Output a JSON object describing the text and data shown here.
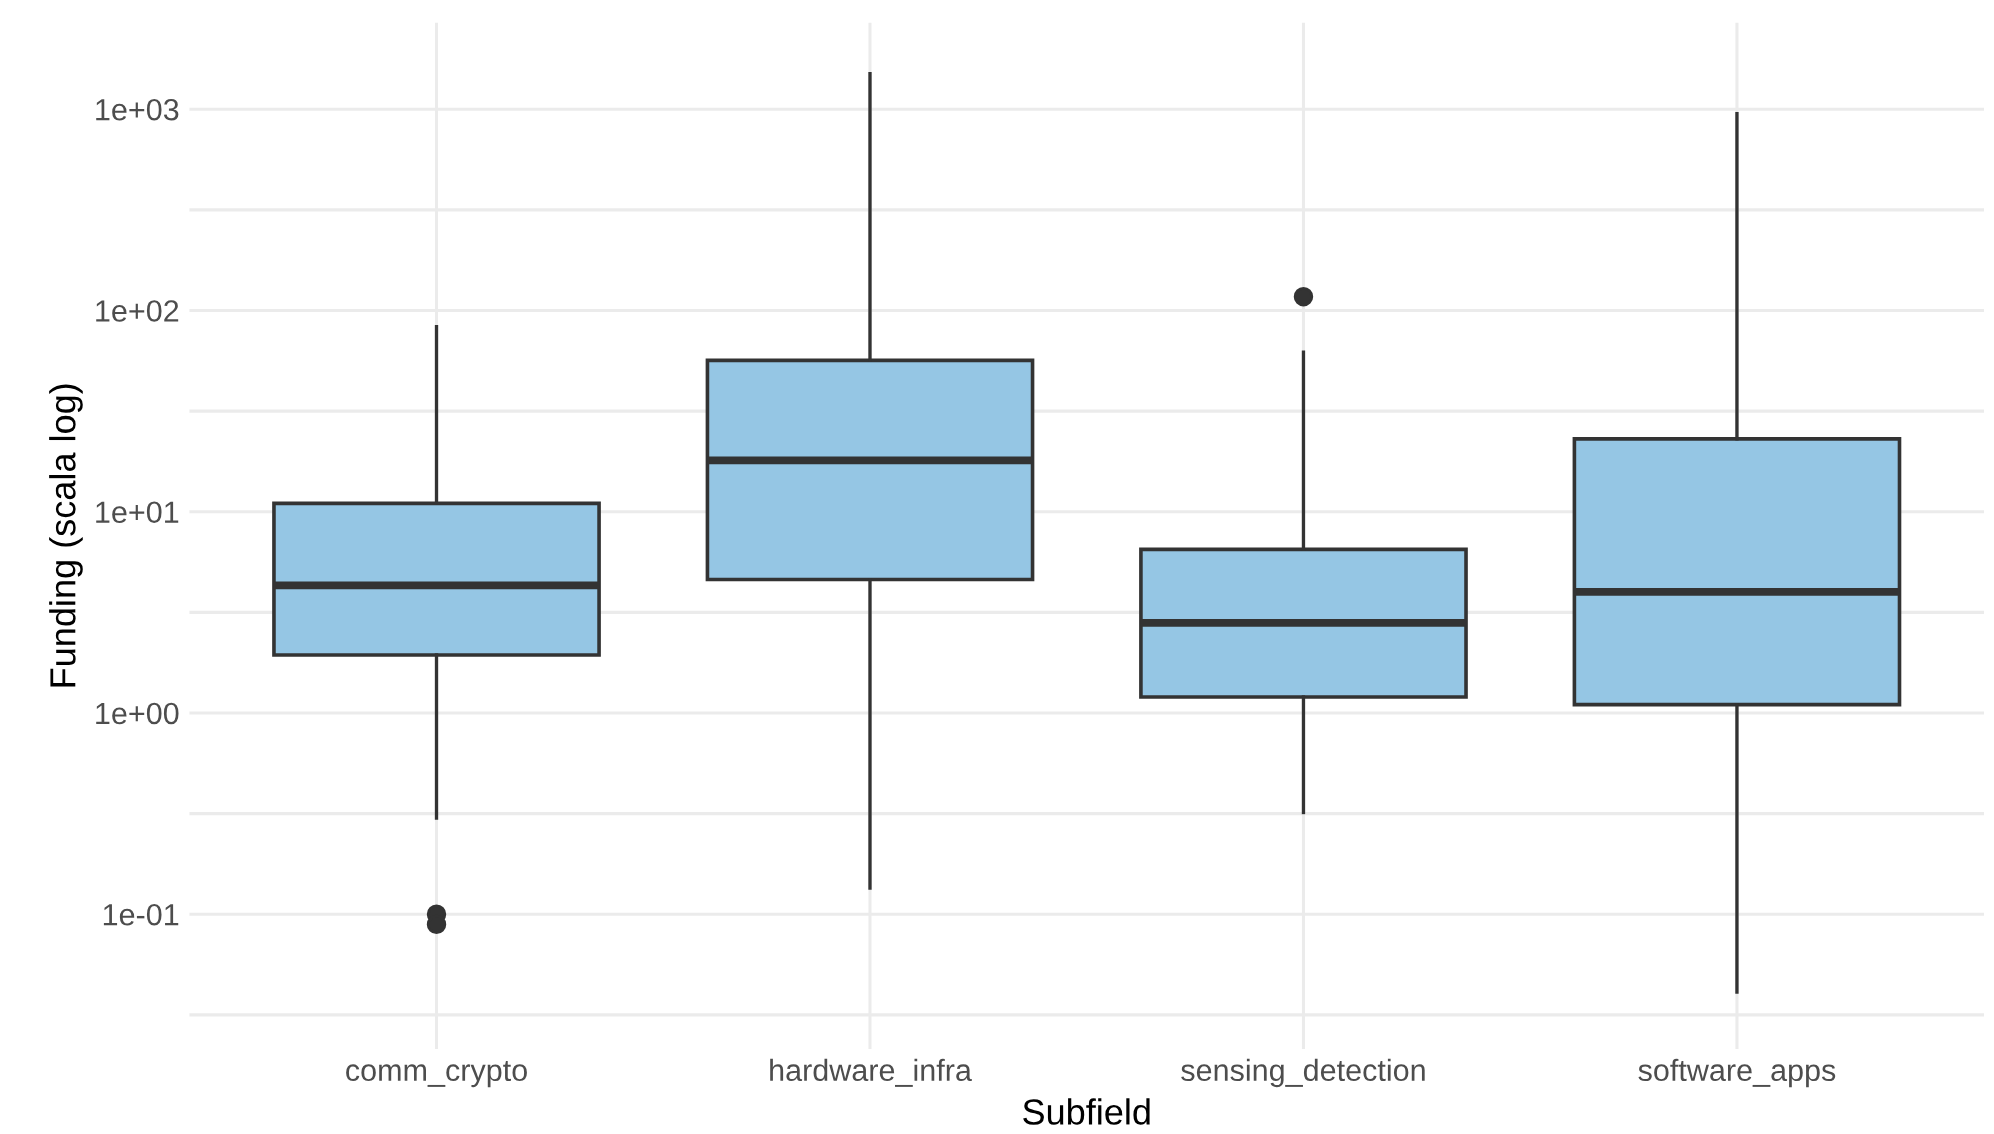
{
  "chart_data": {
    "type": "box",
    "xlabel": "Subfield",
    "ylabel": "Funding (scala log)",
    "categories": [
      "comm_crypto",
      "hardware_infra",
      "sensing_detection",
      "software_apps"
    ],
    "color": "#95c6e4",
    "log": true,
    "grid": true,
    "ylim": [
      0.0214,
      2690
    ],
    "yticks": [
      {
        "value": 0.1,
        "label": "1e-01"
      },
      {
        "value": 1,
        "label": "1e+00"
      },
      {
        "value": 10,
        "label": "1e+01"
      },
      {
        "value": 100,
        "label": "1e+02"
      },
      {
        "value": 1000,
        "label": "1e+03"
      },
      {
        "value": 0.0316,
        "label": null
      },
      {
        "value": 0.316,
        "label": null
      },
      {
        "value": 3.16,
        "label": null
      },
      {
        "value": 31.6,
        "label": null
      },
      {
        "value": 316,
        "label": null
      }
    ],
    "boxes": [
      {
        "low": 0.3,
        "q1": 1.94,
        "median": 4.3,
        "q3": 11,
        "high": 83,
        "outliers": [
          0.1,
          0.089
        ]
      },
      {
        "low": 0.135,
        "q1": 4.6,
        "median": 18,
        "q3": 56.5,
        "high": 1500
      },
      {
        "low": 0.32,
        "q1": 1.2,
        "median": 2.8,
        "q3": 6.5,
        "high": 62,
        "outliers": [
          117
        ]
      },
      {
        "low": 0.041,
        "q1": 1.1,
        "median": 4.0,
        "q3": 23,
        "high": 950
      }
    ]
  }
}
